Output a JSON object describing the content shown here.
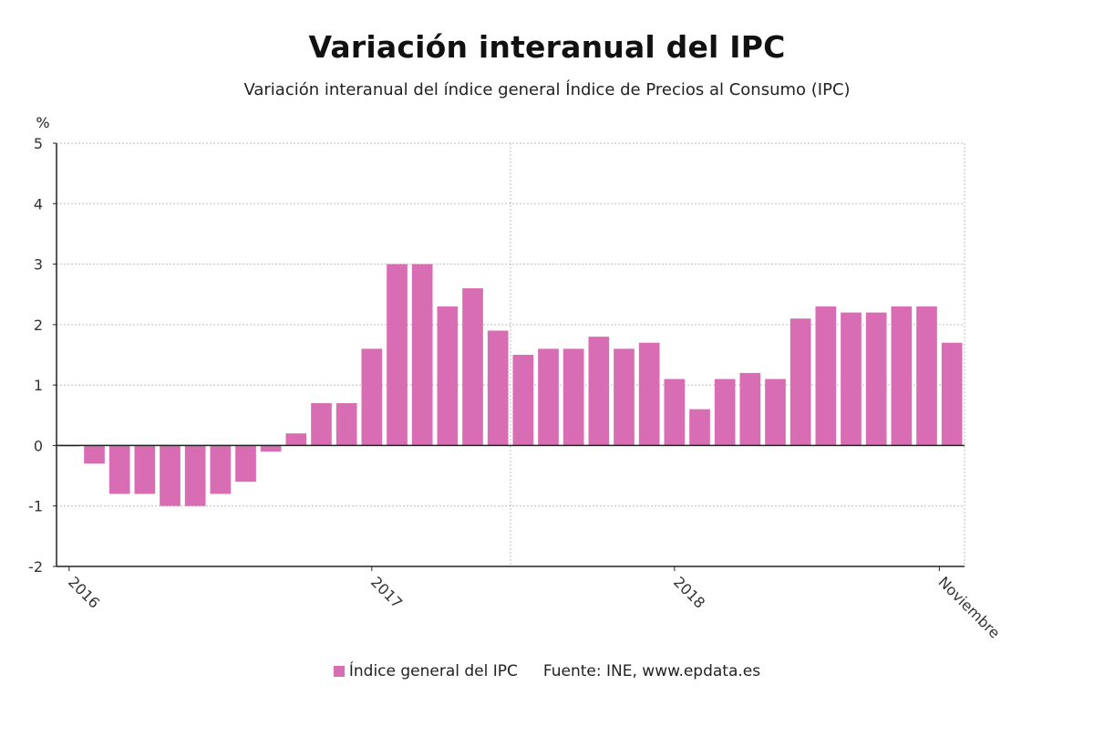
{
  "header": {
    "title": "Variación interanual del IPC",
    "subtitle": "Variación interanual del índice general Índice de Precios al Consumo (IPC)"
  },
  "legend": {
    "series_label": "Índice general del IPC",
    "source": "Fuente: INE, www.epdata.es"
  },
  "colors": {
    "bar": "#d86db3",
    "grid": "#bdbdbd",
    "axis": "#222222"
  },
  "chart_data": {
    "type": "bar",
    "title": "Variación interanual del IPC",
    "subtitle": "Variación interanual del índice general Índice de Precios al Consumo (IPC)",
    "ylabel": "%",
    "xlabel": "",
    "ylim": [
      -2,
      5
    ],
    "yticks": [
      5,
      4,
      3,
      2,
      1,
      0,
      -1,
      -2
    ],
    "xtick_labels": [
      {
        "label": "2016",
        "index": 0
      },
      {
        "label": "2017",
        "index": 12
      },
      {
        "label": "2018",
        "index": 24
      },
      {
        "label": "Noviembre",
        "index": 34.5
      }
    ],
    "series": [
      {
        "name": "Índice general del IPC",
        "values": [
          0.0,
          -0.3,
          -0.8,
          -0.8,
          -1.0,
          -1.0,
          -0.8,
          -0.6,
          -0.1,
          0.2,
          0.7,
          0.7,
          1.6,
          3.0,
          3.0,
          2.3,
          2.6,
          1.9,
          1.5,
          1.6,
          1.6,
          1.8,
          1.6,
          1.7,
          1.1,
          0.6,
          1.1,
          1.2,
          1.1,
          2.1,
          2.3,
          2.2,
          2.2,
          2.3,
          2.3,
          1.7
        ]
      }
    ]
  }
}
